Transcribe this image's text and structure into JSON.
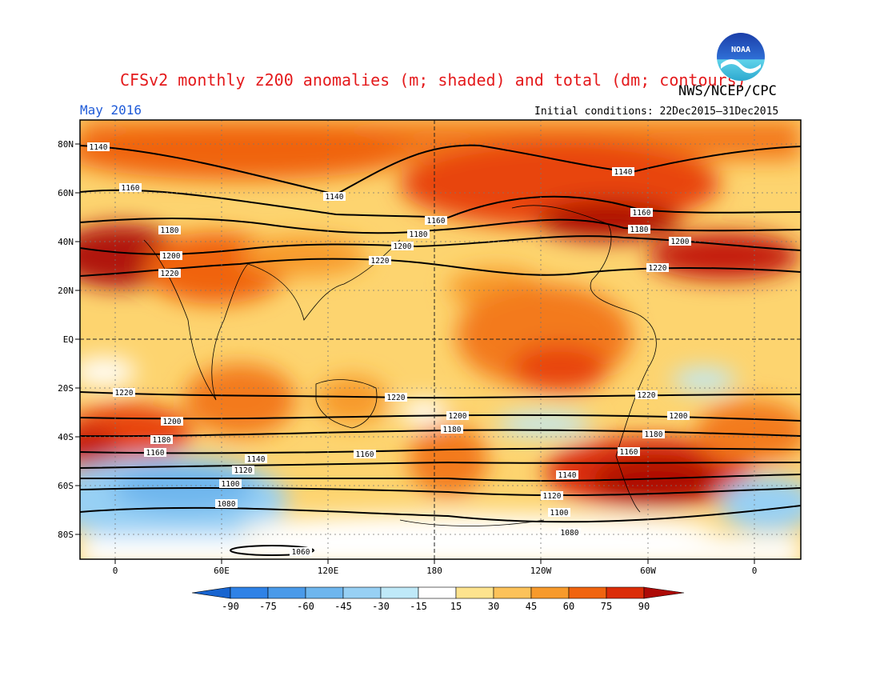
{
  "title": "CFSv2 monthly z200 anomalies (m; shaded) and total (dm; contours)",
  "agency": "NWS/NCEP/CPC",
  "logo_text": "NOAA",
  "valid_month": "May 2016",
  "initial_conditions": "Initial conditions: 22Dec2015–31Dec2015",
  "axes": {
    "lat_labels": [
      "80N",
      "60N",
      "40N",
      "20N",
      "EQ",
      "20S",
      "40S",
      "60S",
      "80S"
    ],
    "lon_labels": [
      "0",
      "60E",
      "120E",
      "180",
      "120W",
      "60W",
      "0"
    ]
  },
  "colorbar": {
    "ticks": [
      "-90",
      "-75",
      "-60",
      "-45",
      "-30",
      "-15",
      "15",
      "30",
      "45",
      "60",
      "75",
      "90"
    ],
    "colors": [
      "#1764d0",
      "#2f82e6",
      "#4a9ae9",
      "#6eb6ee",
      "#97d0f4",
      "#bfe9f8",
      "#ffffff",
      "#fde38e",
      "#fcc25a",
      "#f79a2c",
      "#f0640f",
      "#db2d08",
      "#ad0a06"
    ]
  },
  "contour_labels": [
    "1140",
    "1160",
    "1180",
    "1200",
    "1220",
    "1100",
    "1120",
    "1080",
    "1060"
  ],
  "colors": {
    "title": "#e41a1c",
    "valid_month": "#1f5bd8",
    "contour": "#000000"
  }
}
